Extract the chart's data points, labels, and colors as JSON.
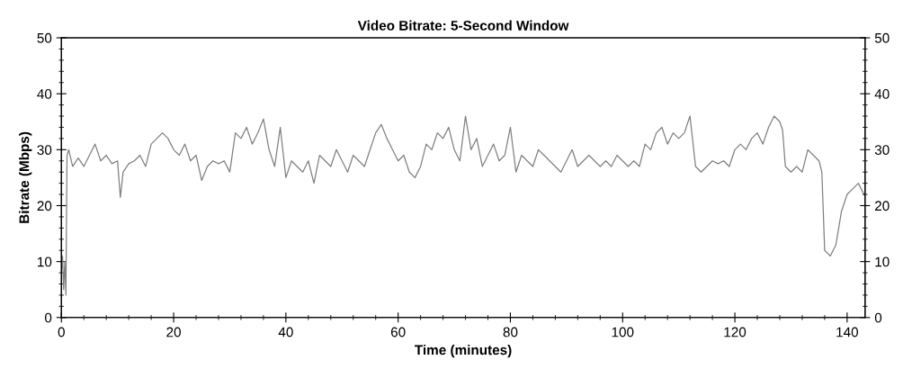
{
  "chart_data": {
    "type": "line",
    "title": "Video Bitrate: 5-Second Window",
    "xlabel": "Time (minutes)",
    "ylabel": "Bitrate (Mbps)",
    "xlim": [
      0,
      143.2
    ],
    "xticks": [
      0,
      20,
      40,
      60,
      80,
      100,
      120,
      140
    ],
    "ylim": [
      0,
      50
    ],
    "yticks": [
      0,
      10,
      20,
      30,
      40,
      50
    ],
    "y2lim": [
      0,
      50
    ],
    "y2ticks": [
      0,
      10,
      20,
      30,
      40,
      50
    ],
    "grid": false,
    "marker": "none",
    "line_style": "solid",
    "series": [
      {
        "color": "#808080",
        "x": [
          0,
          0.2,
          0.4,
          0.6,
          0.8,
          1.0,
          1.3,
          2,
          3,
          4,
          5,
          6,
          7,
          8,
          9,
          10,
          10.5,
          11,
          12,
          13,
          14,
          15,
          16,
          17,
          18,
          19,
          20,
          21,
          22,
          23,
          24,
          25,
          26,
          27,
          28,
          29,
          30,
          31,
          32,
          33,
          34,
          35,
          36,
          37,
          38,
          39,
          40,
          41,
          42,
          43,
          44,
          45,
          46,
          47,
          48,
          49,
          50,
          51,
          52,
          53,
          54,
          55,
          56,
          57,
          58,
          59,
          60,
          61,
          62,
          63,
          64,
          65,
          66,
          67,
          68,
          69,
          70,
          71,
          72,
          73,
          74,
          75,
          76,
          77,
          78,
          79,
          80,
          81,
          82,
          83,
          84,
          85,
          86,
          87,
          88,
          89,
          90,
          91,
          92,
          93,
          94,
          95,
          96,
          97,
          98,
          99,
          100,
          101,
          102,
          103,
          104,
          105,
          106,
          107,
          108,
          109,
          110,
          111,
          112,
          113,
          114,
          115,
          116,
          117,
          118,
          119,
          120,
          121,
          122,
          123,
          124,
          125,
          126,
          127,
          128,
          128.5,
          129,
          130,
          131,
          132,
          133,
          134,
          135,
          135.5,
          136,
          137,
          138,
          139,
          140,
          141,
          142,
          143
        ],
        "values": [
          8,
          11,
          5,
          10,
          4,
          29,
          30,
          27,
          28.5,
          27,
          29,
          31,
          28,
          29,
          27.5,
          28,
          21.5,
          26,
          27.5,
          28,
          29,
          27,
          31,
          32,
          33,
          32,
          30,
          29,
          31,
          28,
          29,
          24.5,
          27,
          28,
          27.5,
          28,
          26,
          33,
          32,
          34,
          31,
          33,
          35.5,
          30,
          27,
          34,
          25,
          28,
          27,
          26,
          28,
          24,
          29,
          28,
          27,
          30,
          28,
          26,
          29,
          28,
          27,
          30,
          33,
          34.5,
          32,
          30,
          28,
          29,
          26,
          25,
          27,
          31,
          30,
          33,
          32,
          34,
          30,
          28,
          36,
          30,
          32,
          27,
          29,
          31,
          28,
          29,
          34,
          26,
          29,
          28,
          27,
          30,
          29,
          28,
          27,
          26,
          28,
          30,
          27,
          28,
          29,
          28,
          27,
          28,
          27,
          29,
          28,
          27,
          28,
          27,
          31,
          30,
          33,
          34,
          31,
          33,
          32,
          33,
          36,
          27,
          26,
          27,
          28,
          27.5,
          28,
          27,
          30,
          31,
          30,
          32,
          33,
          31,
          34,
          36,
          35,
          33.5,
          27,
          26,
          27,
          26,
          30,
          29,
          28,
          26,
          12,
          11,
          13,
          19,
          22,
          23,
          24,
          22
        ]
      }
    ]
  }
}
